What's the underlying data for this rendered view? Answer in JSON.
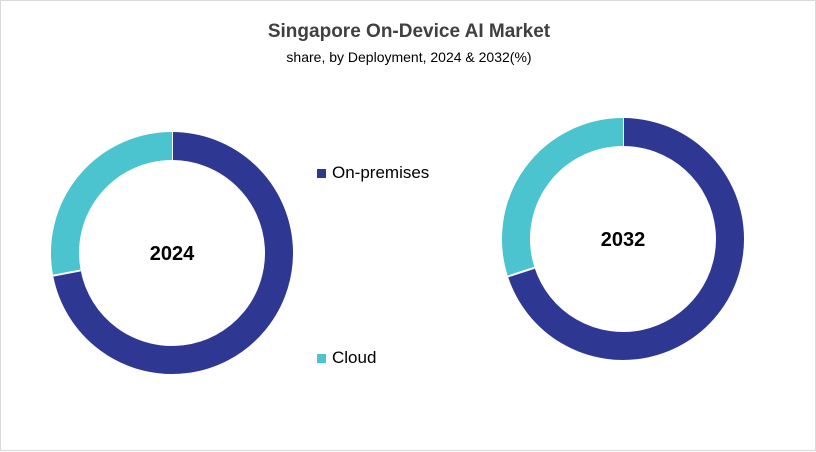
{
  "chart_data": {
    "type": "donut",
    "title": "Singapore On-Device AI Market",
    "subtitle": "share, by Deployment, 2024 & 2032(%)",
    "legend": [
      {
        "name": "On-premises",
        "color": "#2E3892"
      },
      {
        "name": "Cloud",
        "color": "#4BC4D0"
      }
    ],
    "legend_position": "center",
    "charts": [
      {
        "label": "2024",
        "values": {
          "On-premises": 72,
          "Cloud": 28
        }
      },
      {
        "label": "2032",
        "values": {
          "On-premises": 70,
          "Cloud": 30
        }
      }
    ]
  }
}
